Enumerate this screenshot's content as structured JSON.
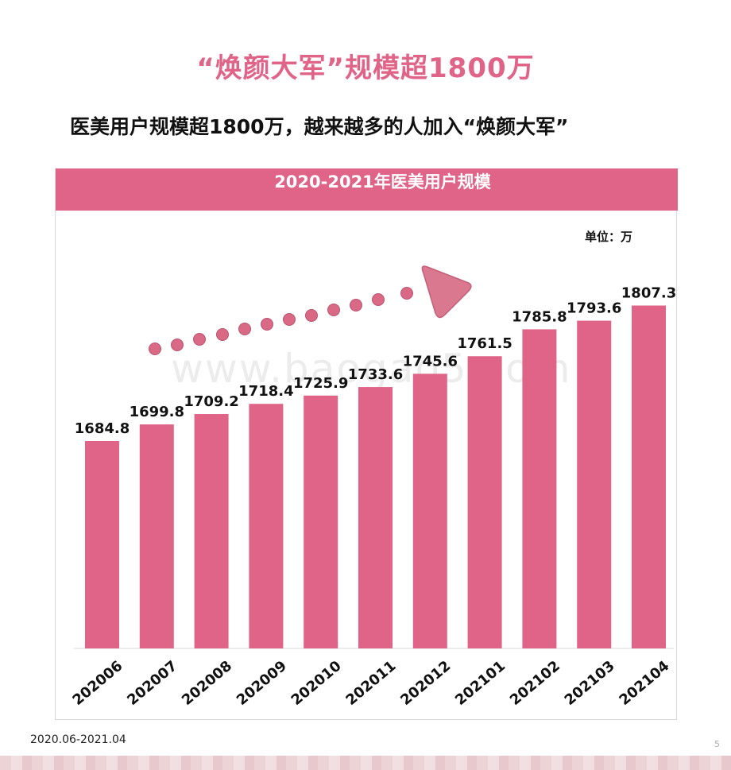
{
  "page": {
    "title": "“焕颜大军”规模超1800万",
    "subtitle": "医美用户规模超1800万，越来越多的人加入“焕颜大军”",
    "footer_note": "2020.06-2021.04",
    "page_number": "5",
    "watermark": "www.baogao5.com"
  },
  "colors": {
    "accent": "#e06388",
    "dots": "#d96985",
    "arrow": "#d9788f"
  },
  "chart_data": {
    "type": "bar",
    "title": "2020-2021年医美用户规模",
    "unit_label": "单位：万",
    "categories": [
      "202006",
      "202007",
      "202008",
      "202009",
      "202010",
      "202011",
      "202012",
      "202101",
      "202102",
      "202103",
      "202104"
    ],
    "values": [
      1684.8,
      1699.8,
      1709.2,
      1718.4,
      1725.9,
      1733.6,
      1745.6,
      1761.5,
      1785.8,
      1793.6,
      1807.3
    ],
    "value_labels": [
      "1684.8",
      "1699.8",
      "1709.2",
      "1718.4",
      "1725.9",
      "1733.6",
      "1745.6",
      "1761.5",
      "1785.8",
      "1793.6",
      "1807.3"
    ],
    "legend": "none",
    "grid": false
  }
}
